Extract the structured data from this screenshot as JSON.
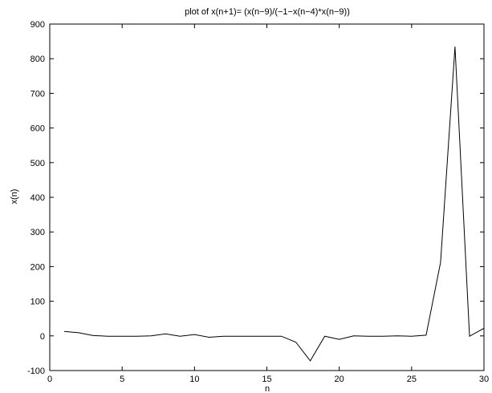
{
  "chart_data": {
    "type": "line",
    "title": "plot of x(n+1)= (x(n−9)/(−1−x(n−4)*x(n−9))",
    "xlabel": "n",
    "ylabel": "x(n)",
    "xlim": [
      0,
      30
    ],
    "ylim": [
      -100,
      900
    ],
    "x_ticks": [
      0,
      5,
      10,
      15,
      20,
      25,
      30
    ],
    "y_ticks": [
      -100,
      0,
      100,
      200,
      300,
      400,
      500,
      600,
      700,
      800,
      900
    ],
    "grid": false,
    "line_color": "#000000",
    "series": [
      {
        "x": [
          1,
          2,
          3,
          4,
          5,
          6,
          7,
          8,
          9,
          10,
          11,
          12,
          13,
          14,
          15,
          16,
          17,
          18,
          19,
          20,
          21,
          22,
          23,
          24,
          25,
          26,
          27,
          28,
          29,
          30
        ],
        "values": [
          13,
          9,
          1,
          -1,
          -1,
          -1,
          0,
          6,
          -1,
          4,
          -4,
          -1,
          -1,
          -1,
          -1,
          -1,
          -18,
          -72,
          -1,
          -10,
          0,
          -1,
          -1,
          0,
          -1,
          2,
          212,
          835,
          -1,
          22
        ]
      }
    ]
  }
}
